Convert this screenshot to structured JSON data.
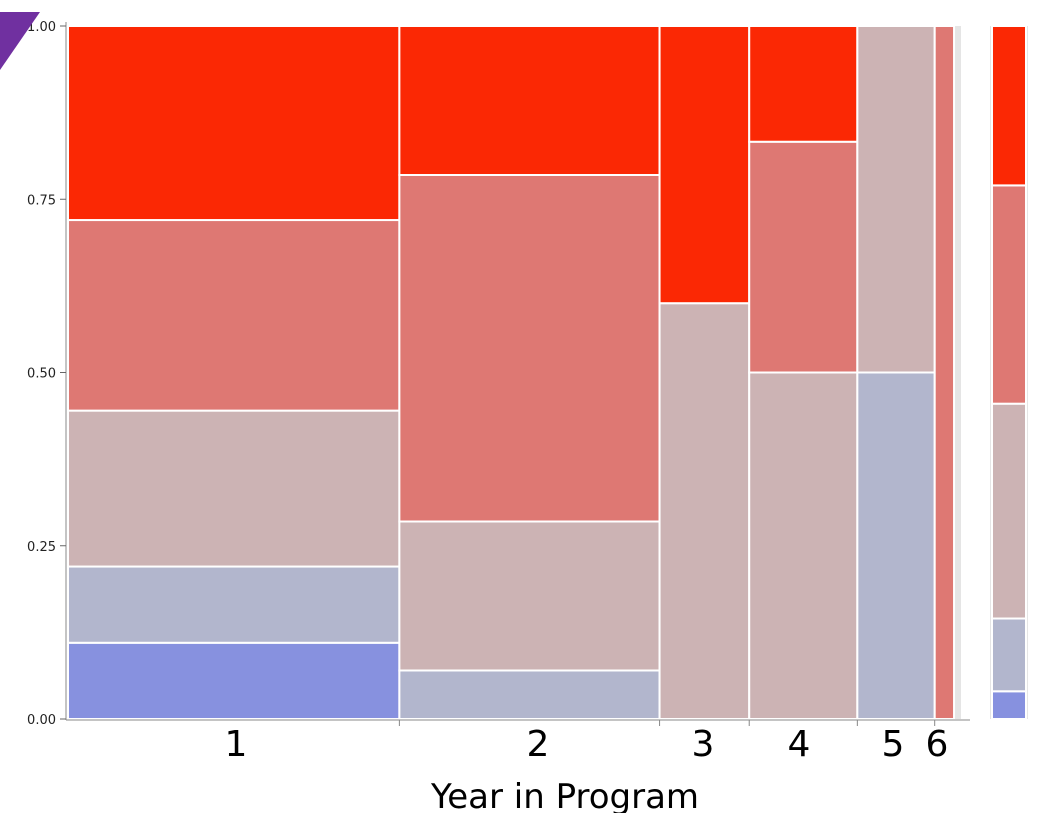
{
  "chart_data": {
    "type": "mosaic",
    "xlabel": "Year in Program",
    "ylabel": "",
    "ylim": [
      0,
      1
    ],
    "yticks": [
      "0.00",
      "0.25",
      "0.50",
      "0.75",
      "1.00"
    ],
    "ytick_values": [
      0,
      0.25,
      0.5,
      0.75,
      1.0
    ],
    "grid": false,
    "categories": [
      "1",
      "2",
      "3",
      "4",
      "5",
      "6"
    ],
    "category_shares": [
      0.377,
      0.296,
      0.102,
      0.123,
      0.088,
      0.022
    ],
    "level_colors": [
      "#8791df",
      "#b2b6cd",
      "#ccb3b4",
      "#de7873",
      "#fb2804"
    ],
    "columns": [
      {
        "category": "1",
        "proportions": [
          0.11,
          0.11,
          0.225,
          0.275,
          0.28
        ]
      },
      {
        "category": "2",
        "proportions": [
          0.0,
          0.07,
          0.215,
          0.5,
          0.215
        ]
      },
      {
        "category": "3",
        "proportions": [
          0.0,
          0.0,
          0.6,
          0.0,
          0.4
        ]
      },
      {
        "category": "4",
        "proportions": [
          0.0,
          0.0,
          0.5,
          0.333,
          0.167
        ]
      },
      {
        "category": "5",
        "proportions": [
          0.0,
          0.5,
          0.5,
          0.0,
          0.0
        ]
      },
      {
        "category": "6",
        "proportions": [
          0.0,
          0.0,
          0.0,
          1.0,
          0.0
        ]
      }
    ],
    "marginal": {
      "proportions": [
        0.04,
        0.105,
        0.31,
        0.315,
        0.23
      ]
    }
  }
}
